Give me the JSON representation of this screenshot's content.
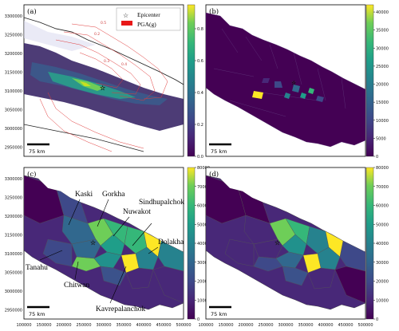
{
  "figure": {
    "panels": [
      {
        "id": "a",
        "label": "(a)",
        "scale_bar": "75 km",
        "colorbar": {
          "ticks": [
            "0.0",
            "0.2",
            "0.4",
            "0.6",
            "0.8"
          ],
          "min": 0,
          "max": 0.95
        },
        "legend": {
          "epicenter": "Epicenter",
          "pga": "PGA(g)"
        },
        "contour_labels": [
          "0.5",
          "0.2",
          "0.3",
          "0.4"
        ]
      },
      {
        "id": "b",
        "label": "(b)",
        "scale_bar": "75 km",
        "colorbar": {
          "ticks": [
            "0",
            "5000",
            "10000",
            "15000",
            "20000",
            "25000",
            "30000",
            "35000",
            "40000"
          ],
          "min": 0,
          "max": 42000
        }
      },
      {
        "id": "c",
        "label": "(c)",
        "scale_bar": "75 km",
        "colorbar": {
          "ticks": [
            "0",
            "10000",
            "20000",
            "30000",
            "40000",
            "50000",
            "60000",
            "70000",
            "80000"
          ],
          "min": 0,
          "max": 80000
        },
        "districts": [
          "Kaski",
          "Gorkha",
          "Nuwakot",
          "Sindhupalchok",
          "Dolakha",
          "Tanahu",
          "Chitwan",
          "Kavrepalanchok"
        ]
      },
      {
        "id": "d",
        "label": "(d)",
        "scale_bar": "75 km",
        "colorbar": {
          "ticks": [
            "0",
            "10000",
            "20000",
            "30000",
            "40000",
            "50000",
            "60000",
            "70000",
            "80000"
          ],
          "min": 0,
          "max": 80000
        }
      }
    ],
    "y_ticks": [
      "2950000",
      "3000000",
      "3050000",
      "3100000",
      "3150000",
      "3200000",
      "3250000",
      "3300000"
    ],
    "x_ticks": [
      "100000",
      "150000",
      "200000",
      "250000",
      "300000",
      "350000",
      "400000",
      "450000",
      "500000"
    ],
    "colors": {
      "dark": "#440154",
      "mid": "#21918c",
      "yellow": "#fde725",
      "contour": "#e03a3a"
    }
  }
}
